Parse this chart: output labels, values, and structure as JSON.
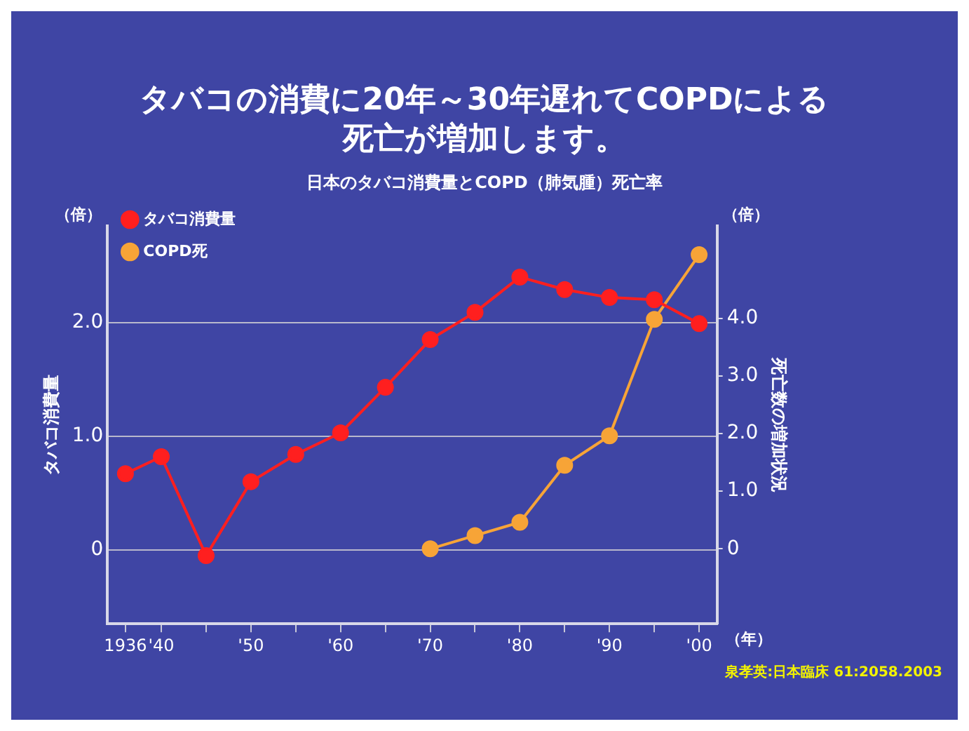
{
  "chart_data": {
    "type": "line",
    "title": "タバコの消費に20年～30年遅れてCOPDによる死亡が増加します。",
    "subtitle": "日本のタバコ消費量とCOPD（肺気腫）死亡率",
    "ylabel": "タバコ消費量",
    "y2label": "死亡数の増加状況",
    "x": [
      1936,
      1940,
      1945,
      1950,
      1955,
      1960,
      1965,
      1970,
      1975,
      1980,
      1985,
      1990,
      1995,
      2000
    ],
    "xlim": [
      1934,
      2002
    ],
    "xticks": [
      {
        "value": 1936,
        "label": "1936"
      },
      {
        "value": 1940,
        "label": "'40"
      },
      {
        "value": 1945,
        "label": null
      },
      {
        "value": 1950,
        "label": "'50"
      },
      {
        "value": 1955,
        "label": null
      },
      {
        "value": 1960,
        "label": "'60"
      },
      {
        "value": 1965,
        "label": null
      },
      {
        "value": 1970,
        "label": "'70"
      },
      {
        "value": 1975,
        "label": null
      },
      {
        "value": 1980,
        "label": "'80"
      },
      {
        "value": 1985,
        "label": null
      },
      {
        "value": 1990,
        "label": "'90"
      },
      {
        "value": 1995,
        "label": null
      },
      {
        "value": 2000,
        "label": "'00"
      }
    ],
    "ylim": [
      -0.65,
      2.85
    ],
    "yticks": [
      0,
      {
        "value": 1,
        "label": "1.0"
      },
      {
        "value": 2,
        "label": "2.0"
      }
    ],
    "y2lim": [
      -1.3,
      5.6
    ],
    "y2ticks": [
      0,
      {
        "value": 1,
        "label": "1.0"
      },
      {
        "value": 2,
        "label": "2.0"
      },
      {
        "value": 3,
        "label": "3.0"
      },
      {
        "value": 4,
        "label": "4.0"
      }
    ],
    "series": [
      {
        "name": "タバコ消費量",
        "color": "#ff1f1f",
        "values": [
          0.67,
          0.82,
          -0.05,
          0.6,
          0.84,
          1.03,
          1.43,
          1.85,
          2.09,
          2.4,
          2.29,
          2.22,
          2.2,
          1.99
        ]
      },
      {
        "name": "COPD死",
        "color": "#f7a437",
        "axis": "y2",
        "values": [
          null,
          null,
          null,
          null,
          null,
          null,
          null,
          0,
          0.23,
          0.46,
          1.45,
          1.96,
          3.98,
          5.1
        ]
      }
    ],
    "annotations": [
      "（倍）",
      "（倍）",
      "（年）",
      "泉孝英:日本臨床 61:2058.2003"
    ],
    "grid": "y",
    "legend": "top left",
    "marker": "circle",
    "line_style": "solid"
  }
}
